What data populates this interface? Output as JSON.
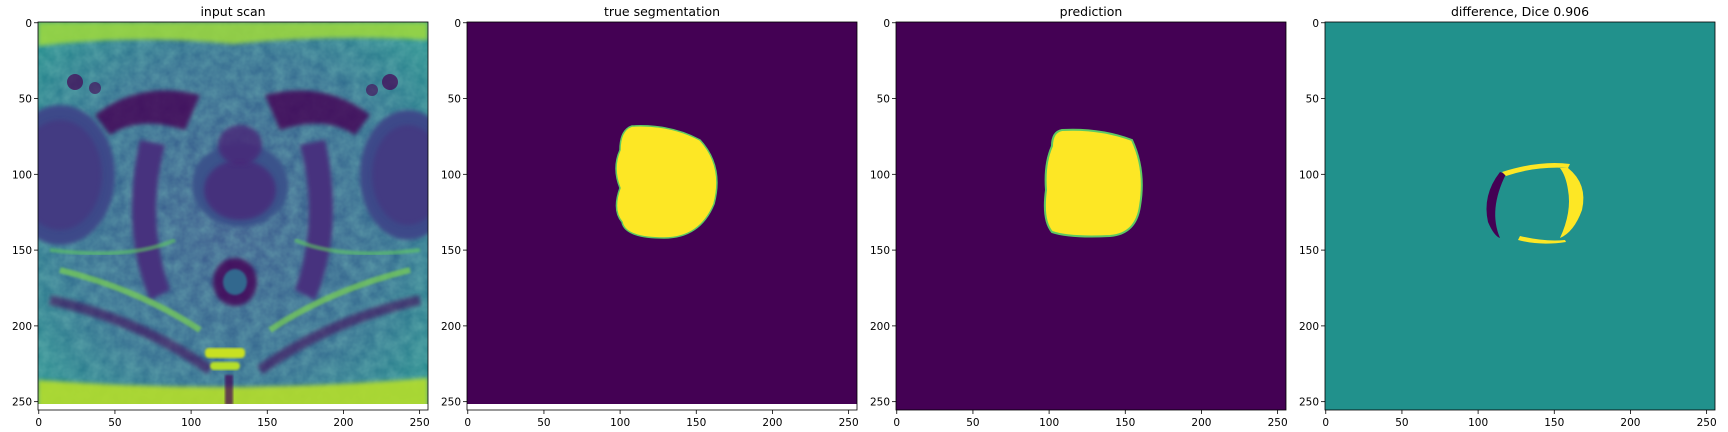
{
  "panels": [
    {
      "title": "input scan"
    },
    {
      "title": "true segmentation"
    },
    {
      "title": "prediction"
    },
    {
      "title": "difference, Dice 0.906"
    }
  ],
  "axes": {
    "x_ticks": [
      "0",
      "50",
      "100",
      "150",
      "200",
      "250"
    ],
    "y_ticks": [
      "0",
      "50",
      "100",
      "150",
      "200",
      "250"
    ]
  },
  "colors": {
    "viridis_dark": "#440154",
    "viridis_mid": "#21918c",
    "viridis_yellow": "#fde725",
    "viridis_green": "#5ec962"
  }
}
